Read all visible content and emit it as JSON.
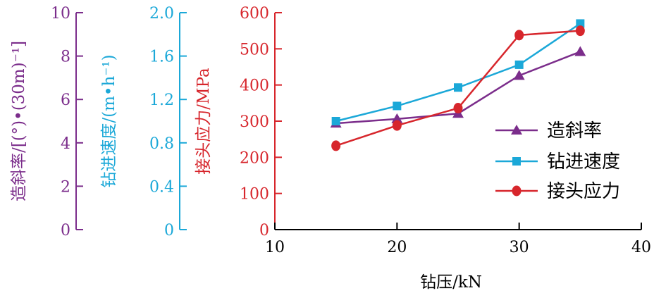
{
  "chart_data": {
    "type": "line",
    "x": [
      15,
      20,
      25,
      30,
      35
    ],
    "xlabel": "钻压/kN",
    "xlim": [
      10,
      40
    ],
    "x_ticks": [
      10,
      20,
      30,
      40
    ],
    "axes": [
      {
        "key": "incline",
        "label": "造斜率/[(°)•(30m)⁻¹]",
        "ylim": [
          0,
          10
        ],
        "ticks": [
          0,
          2,
          4,
          6,
          8,
          10
        ],
        "tick_labels": [
          "0",
          "2",
          "4",
          "6",
          "8",
          "10"
        ],
        "color": "#7b2d8b"
      },
      {
        "key": "speed",
        "label": "钻进速度/(m•h⁻¹)",
        "ylim": [
          0,
          2.0
        ],
        "ticks": [
          0,
          0.4,
          0.8,
          1.2,
          1.6,
          2.0
        ],
        "tick_labels": [
          "0",
          "0.4",
          "0.8",
          "1.2",
          "1.6",
          "2.0"
        ],
        "color": "#1ba8d8"
      },
      {
        "key": "stress",
        "label": "接头应力/MPa",
        "ylim": [
          0,
          600
        ],
        "ticks": [
          0,
          100,
          200,
          300,
          400,
          500,
          600
        ],
        "tick_labels": [
          "0",
          "100",
          "200",
          "300",
          "400",
          "500",
          "600"
        ],
        "color": "#d7262c"
      }
    ],
    "series": [
      {
        "name": "造斜率",
        "axis": "incline",
        "color": "#7b2d8b",
        "marker": "triangle",
        "values": [
          4.9,
          5.1,
          5.35,
          7.1,
          8.2
        ]
      },
      {
        "name": "钻进速度",
        "axis": "speed",
        "color": "#1ba8d8",
        "marker": "square",
        "values": [
          1.0,
          1.14,
          1.31,
          1.52,
          1.9
        ]
      },
      {
        "name": "接头应力",
        "axis": "stress",
        "color": "#d7262c",
        "marker": "circle",
        "values": [
          232,
          288,
          336,
          538,
          550
        ]
      }
    ],
    "legend_position": "bottom-right",
    "grid": false
  }
}
